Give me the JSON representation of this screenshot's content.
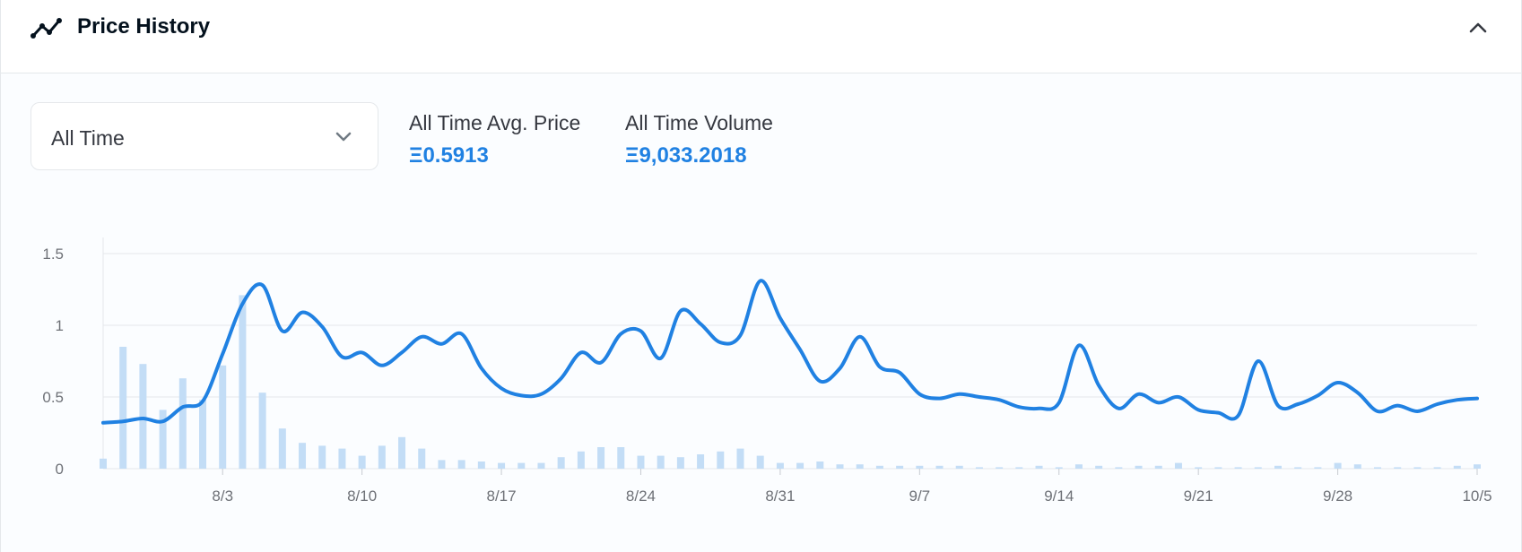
{
  "header": {
    "title": "Price History",
    "icon": "line-chart-icon",
    "collapse_icon": "chevron-up-icon"
  },
  "controls": {
    "range_selected": "All Time",
    "range_icon": "chevron-down-icon"
  },
  "stats": {
    "avg_label": "All Time Avg. Price",
    "avg_value": "Ξ0.5913",
    "volume_label": "All Time Volume",
    "volume_value": "Ξ9,033.2018"
  },
  "colors": {
    "accent": "#2081e2",
    "line": "#2081e2",
    "bar": "#c3ddf6",
    "grid": "#e5e8eb",
    "text_muted": "#6e7177"
  },
  "chart_data": {
    "type": "line",
    "x_start": "7/28",
    "x_end": "10/5",
    "x_ticks": [
      "8/3",
      "8/10",
      "8/17",
      "8/24",
      "8/31",
      "9/7",
      "9/14",
      "9/21",
      "9/28",
      "10/5"
    ],
    "y_ticks": [
      "0",
      "0.5",
      "1",
      "1.5"
    ],
    "ylim": [
      0,
      1.6
    ],
    "grid": true,
    "series": [
      {
        "kind": "line",
        "points": [
          [
            "7/28",
            0.32
          ],
          [
            "7/29",
            0.33
          ],
          [
            "7/30",
            0.35
          ],
          [
            "7/31",
            0.33
          ],
          [
            "8/1",
            0.43
          ],
          [
            "8/2",
            0.47
          ],
          [
            "8/3",
            0.8
          ],
          [
            "8/4",
            1.15
          ],
          [
            "8/5",
            1.28
          ],
          [
            "8/6",
            0.96
          ],
          [
            "8/7",
            1.09
          ],
          [
            "8/8",
            0.99
          ],
          [
            "8/9",
            0.78
          ],
          [
            "8/10",
            0.81
          ],
          [
            "8/11",
            0.72
          ],
          [
            "8/12",
            0.81
          ],
          [
            "8/13",
            0.92
          ],
          [
            "8/14",
            0.87
          ],
          [
            "8/15",
            0.94
          ],
          [
            "8/16",
            0.7
          ],
          [
            "8/17",
            0.56
          ],
          [
            "8/18",
            0.51
          ],
          [
            "8/19",
            0.52
          ],
          [
            "8/20",
            0.63
          ],
          [
            "8/21",
            0.81
          ],
          [
            "8/22",
            0.74
          ],
          [
            "8/23",
            0.94
          ],
          [
            "8/24",
            0.96
          ],
          [
            "8/25",
            0.77
          ],
          [
            "8/26",
            1.1
          ],
          [
            "8/27",
            1.01
          ],
          [
            "8/28",
            0.88
          ],
          [
            "8/29",
            0.93
          ],
          [
            "8/30",
            1.31
          ],
          [
            "8/31",
            1.05
          ],
          [
            "9/1",
            0.83
          ],
          [
            "9/2",
            0.61
          ],
          [
            "9/3",
            0.7
          ],
          [
            "9/4",
            0.92
          ],
          [
            "9/5",
            0.71
          ],
          [
            "9/6",
            0.67
          ],
          [
            "9/7",
            0.52
          ],
          [
            "9/8",
            0.49
          ],
          [
            "9/9",
            0.52
          ],
          [
            "9/10",
            0.5
          ],
          [
            "9/11",
            0.48
          ],
          [
            "9/12",
            0.43
          ],
          [
            "9/13",
            0.42
          ],
          [
            "9/14",
            0.46
          ],
          [
            "9/15",
            0.86
          ],
          [
            "9/16",
            0.58
          ],
          [
            "9/17",
            0.42
          ],
          [
            "9/18",
            0.52
          ],
          [
            "9/19",
            0.46
          ],
          [
            "9/20",
            0.5
          ],
          [
            "9/21",
            0.41
          ],
          [
            "9/22",
            0.39
          ],
          [
            "9/23",
            0.37
          ],
          [
            "9/24",
            0.75
          ],
          [
            "9/25",
            0.44
          ],
          [
            "9/26",
            0.45
          ],
          [
            "9/27",
            0.51
          ],
          [
            "9/28",
            0.6
          ],
          [
            "9/29",
            0.53
          ],
          [
            "9/30",
            0.4
          ],
          [
            "10/1",
            0.44
          ],
          [
            "10/2",
            0.4
          ],
          [
            "10/3",
            0.45
          ],
          [
            "10/4",
            0.48
          ],
          [
            "10/5",
            0.49
          ]
        ]
      },
      {
        "kind": "bar",
        "points": [
          [
            "7/28",
            0.07
          ],
          [
            "7/29",
            0.85
          ],
          [
            "7/30",
            0.73
          ],
          [
            "7/31",
            0.41
          ],
          [
            "8/1",
            0.63
          ],
          [
            "8/2",
            0.48
          ],
          [
            "8/3",
            0.72
          ],
          [
            "8/4",
            1.21
          ],
          [
            "8/5",
            0.53
          ],
          [
            "8/6",
            0.28
          ],
          [
            "8/7",
            0.18
          ],
          [
            "8/8",
            0.16
          ],
          [
            "8/9",
            0.14
          ],
          [
            "8/10",
            0.09
          ],
          [
            "8/11",
            0.16
          ],
          [
            "8/12",
            0.22
          ],
          [
            "8/13",
            0.14
          ],
          [
            "8/14",
            0.06
          ],
          [
            "8/15",
            0.06
          ],
          [
            "8/16",
            0.05
          ],
          [
            "8/17",
            0.04
          ],
          [
            "8/18",
            0.04
          ],
          [
            "8/19",
            0.04
          ],
          [
            "8/20",
            0.08
          ],
          [
            "8/21",
            0.12
          ],
          [
            "8/22",
            0.15
          ],
          [
            "8/23",
            0.15
          ],
          [
            "8/24",
            0.09
          ],
          [
            "8/25",
            0.09
          ],
          [
            "8/26",
            0.08
          ],
          [
            "8/27",
            0.1
          ],
          [
            "8/28",
            0.12
          ],
          [
            "8/29",
            0.14
          ],
          [
            "8/30",
            0.09
          ],
          [
            "8/31",
            0.04
          ],
          [
            "9/1",
            0.04
          ],
          [
            "9/2",
            0.05
          ],
          [
            "9/3",
            0.03
          ],
          [
            "9/4",
            0.03
          ],
          [
            "9/5",
            0.02
          ],
          [
            "9/6",
            0.02
          ],
          [
            "9/7",
            0.02
          ],
          [
            "9/8",
            0.02
          ],
          [
            "9/9",
            0.02
          ],
          [
            "9/10",
            0.01
          ],
          [
            "9/11",
            0.01
          ],
          [
            "9/12",
            0.01
          ],
          [
            "9/13",
            0.02
          ],
          [
            "9/14",
            0.01
          ],
          [
            "9/15",
            0.03
          ],
          [
            "9/16",
            0.02
          ],
          [
            "9/17",
            0.01
          ],
          [
            "9/18",
            0.02
          ],
          [
            "9/19",
            0.02
          ],
          [
            "9/20",
            0.04
          ],
          [
            "9/21",
            0.01
          ],
          [
            "9/22",
            0.01
          ],
          [
            "9/23",
            0.01
          ],
          [
            "9/24",
            0.01
          ],
          [
            "9/25",
            0.02
          ],
          [
            "9/26",
            0.01
          ],
          [
            "9/27",
            0.01
          ],
          [
            "9/28",
            0.04
          ],
          [
            "9/29",
            0.03
          ],
          [
            "9/30",
            0.01
          ],
          [
            "10/1",
            0.01
          ],
          [
            "10/2",
            0.01
          ],
          [
            "10/3",
            0.01
          ],
          [
            "10/4",
            0.02
          ],
          [
            "10/5",
            0.03
          ]
        ]
      }
    ]
  }
}
